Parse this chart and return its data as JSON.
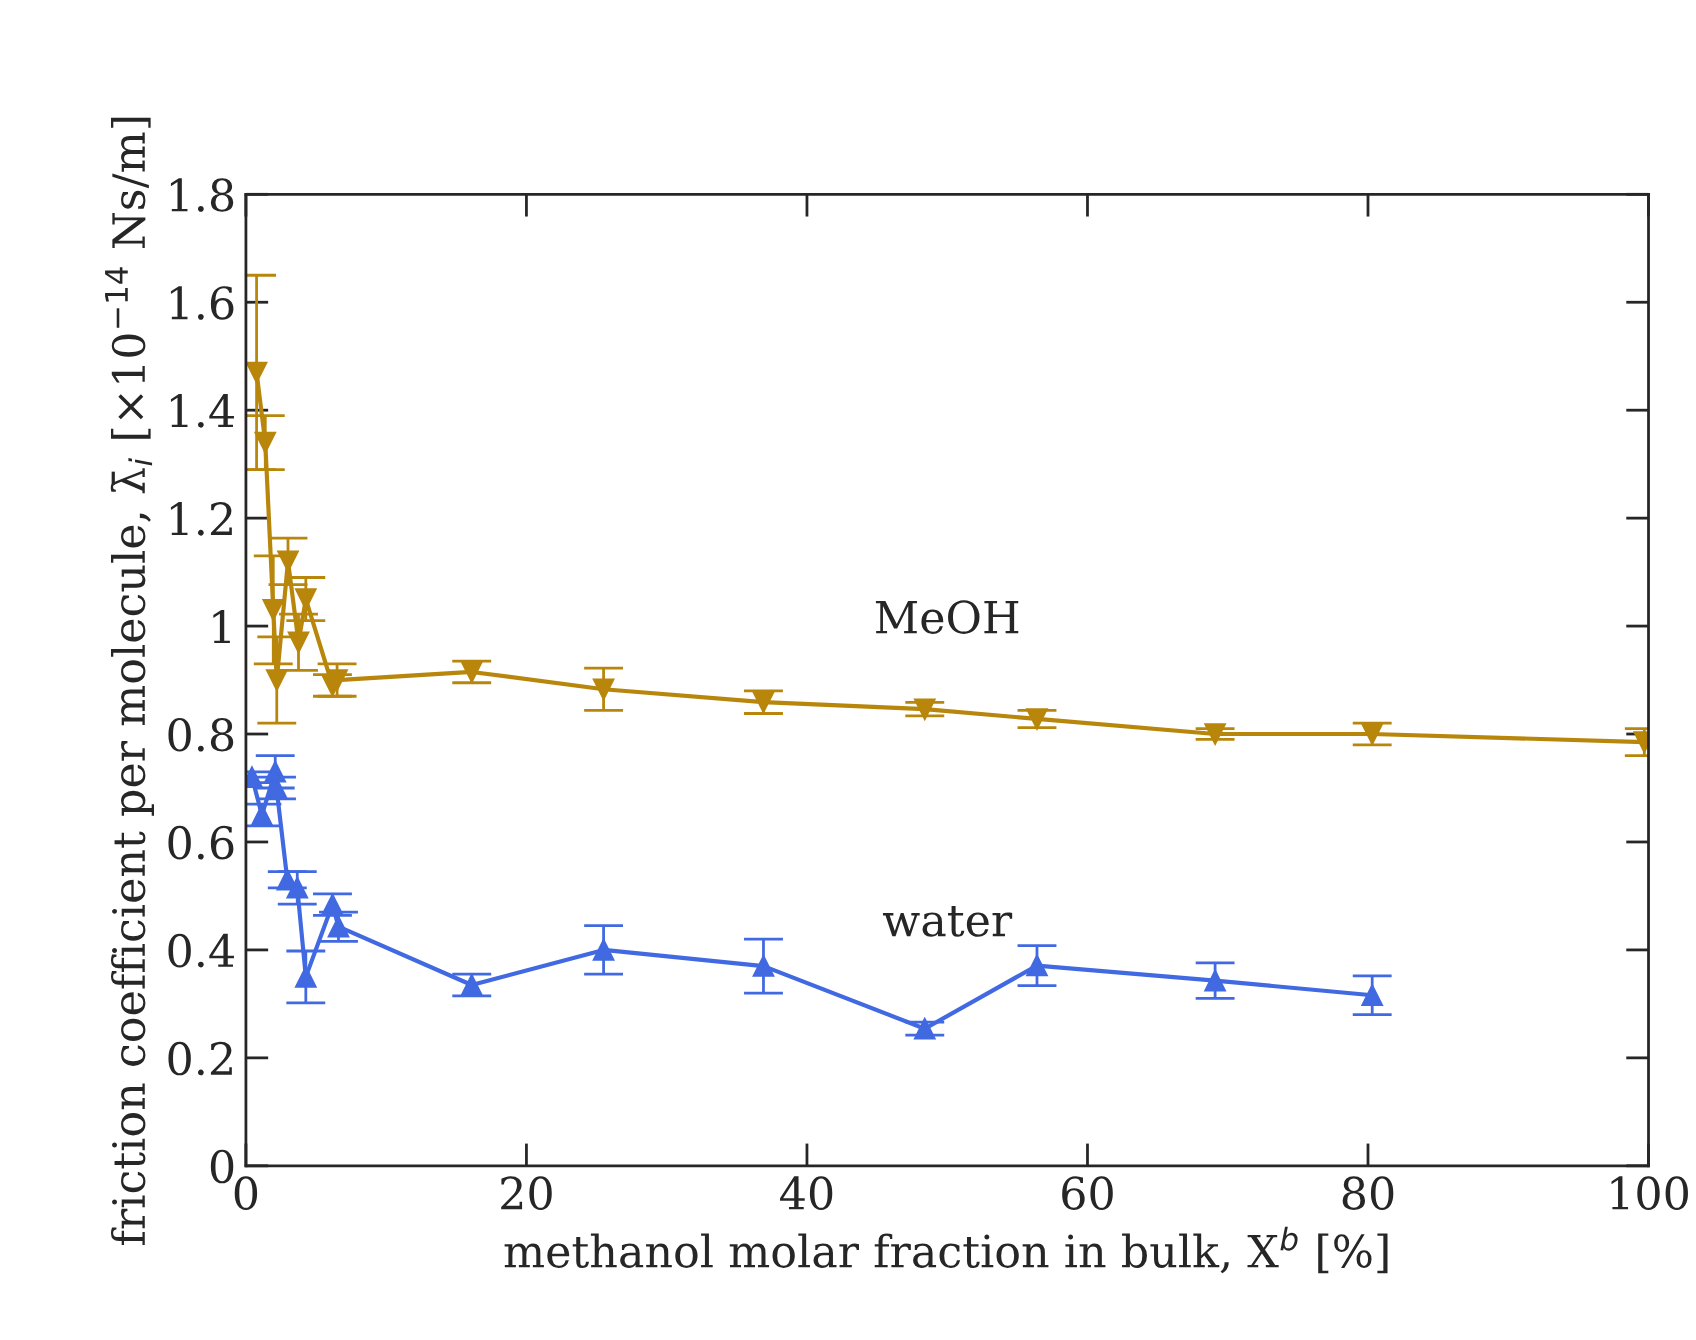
{
  "chart_data": {
    "type": "line",
    "xlabel": "methanol molar fraction in bulk, X$^{b}$ [%]",
    "ylabel": "friction coefficient per molecule, λ̄$_{i}$ [×10$^{−14}$ Ns/m]",
    "xlim": [
      0,
      100
    ],
    "ylim": [
      0,
      1.8
    ],
    "xticks": [
      0,
      20,
      40,
      60,
      80,
      100
    ],
    "yticks": [
      0,
      0.2,
      0.4,
      0.6,
      0.8,
      1,
      1.2,
      1.4,
      1.6,
      1.8
    ],
    "grid": false,
    "legend": false,
    "line_style": "solid",
    "series": [
      {
        "name": "MeOH",
        "color": "#b8860b",
        "marker": "triangle_down",
        "x": [
          0.76,
          1.38,
          1.95,
          2.2,
          3.0,
          3.75,
          4.27,
          6.17,
          6.5,
          16.1,
          25.5,
          36.9,
          48.4,
          56.4,
          69.1,
          80.3,
          99.7
        ],
        "values": [
          1.47,
          1.34,
          1.03,
          0.9,
          1.12,
          0.97,
          1.05,
          0.89,
          0.9,
          0.915,
          0.883,
          0.859,
          0.846,
          0.828,
          0.8,
          0.8,
          0.785
        ],
        "errors": [
          0.18,
          0.05,
          0.1,
          0.08,
          0.043,
          0.052,
          0.04,
          0.02,
          0.03,
          0.02,
          0.039,
          0.021,
          0.0125,
          0.016,
          0.01,
          0.02,
          0.025
        ]
      },
      {
        "name": "water",
        "color": "#4169e1",
        "marker": "triangle",
        "x": [
          0.43,
          1.14,
          2.09,
          2.18,
          2.95,
          3.66,
          4.27,
          6.17,
          6.6,
          16.1,
          25.5,
          36.9,
          48.4,
          56.4,
          69.1,
          80.3
        ],
        "values": [
          0.72,
          0.65,
          0.73,
          0.7,
          0.53,
          0.515,
          0.35,
          0.484,
          0.443,
          0.335,
          0.4,
          0.37,
          0.254,
          0.371,
          0.343,
          0.316
        ],
        "errors": [
          0.01,
          0.02,
          0.03,
          0.02,
          0.015,
          0.03,
          0.048,
          0.02,
          0.027,
          0.02,
          0.045,
          0.05,
          0.012,
          0.037,
          0.033,
          0.036
        ]
      }
    ]
  }
}
